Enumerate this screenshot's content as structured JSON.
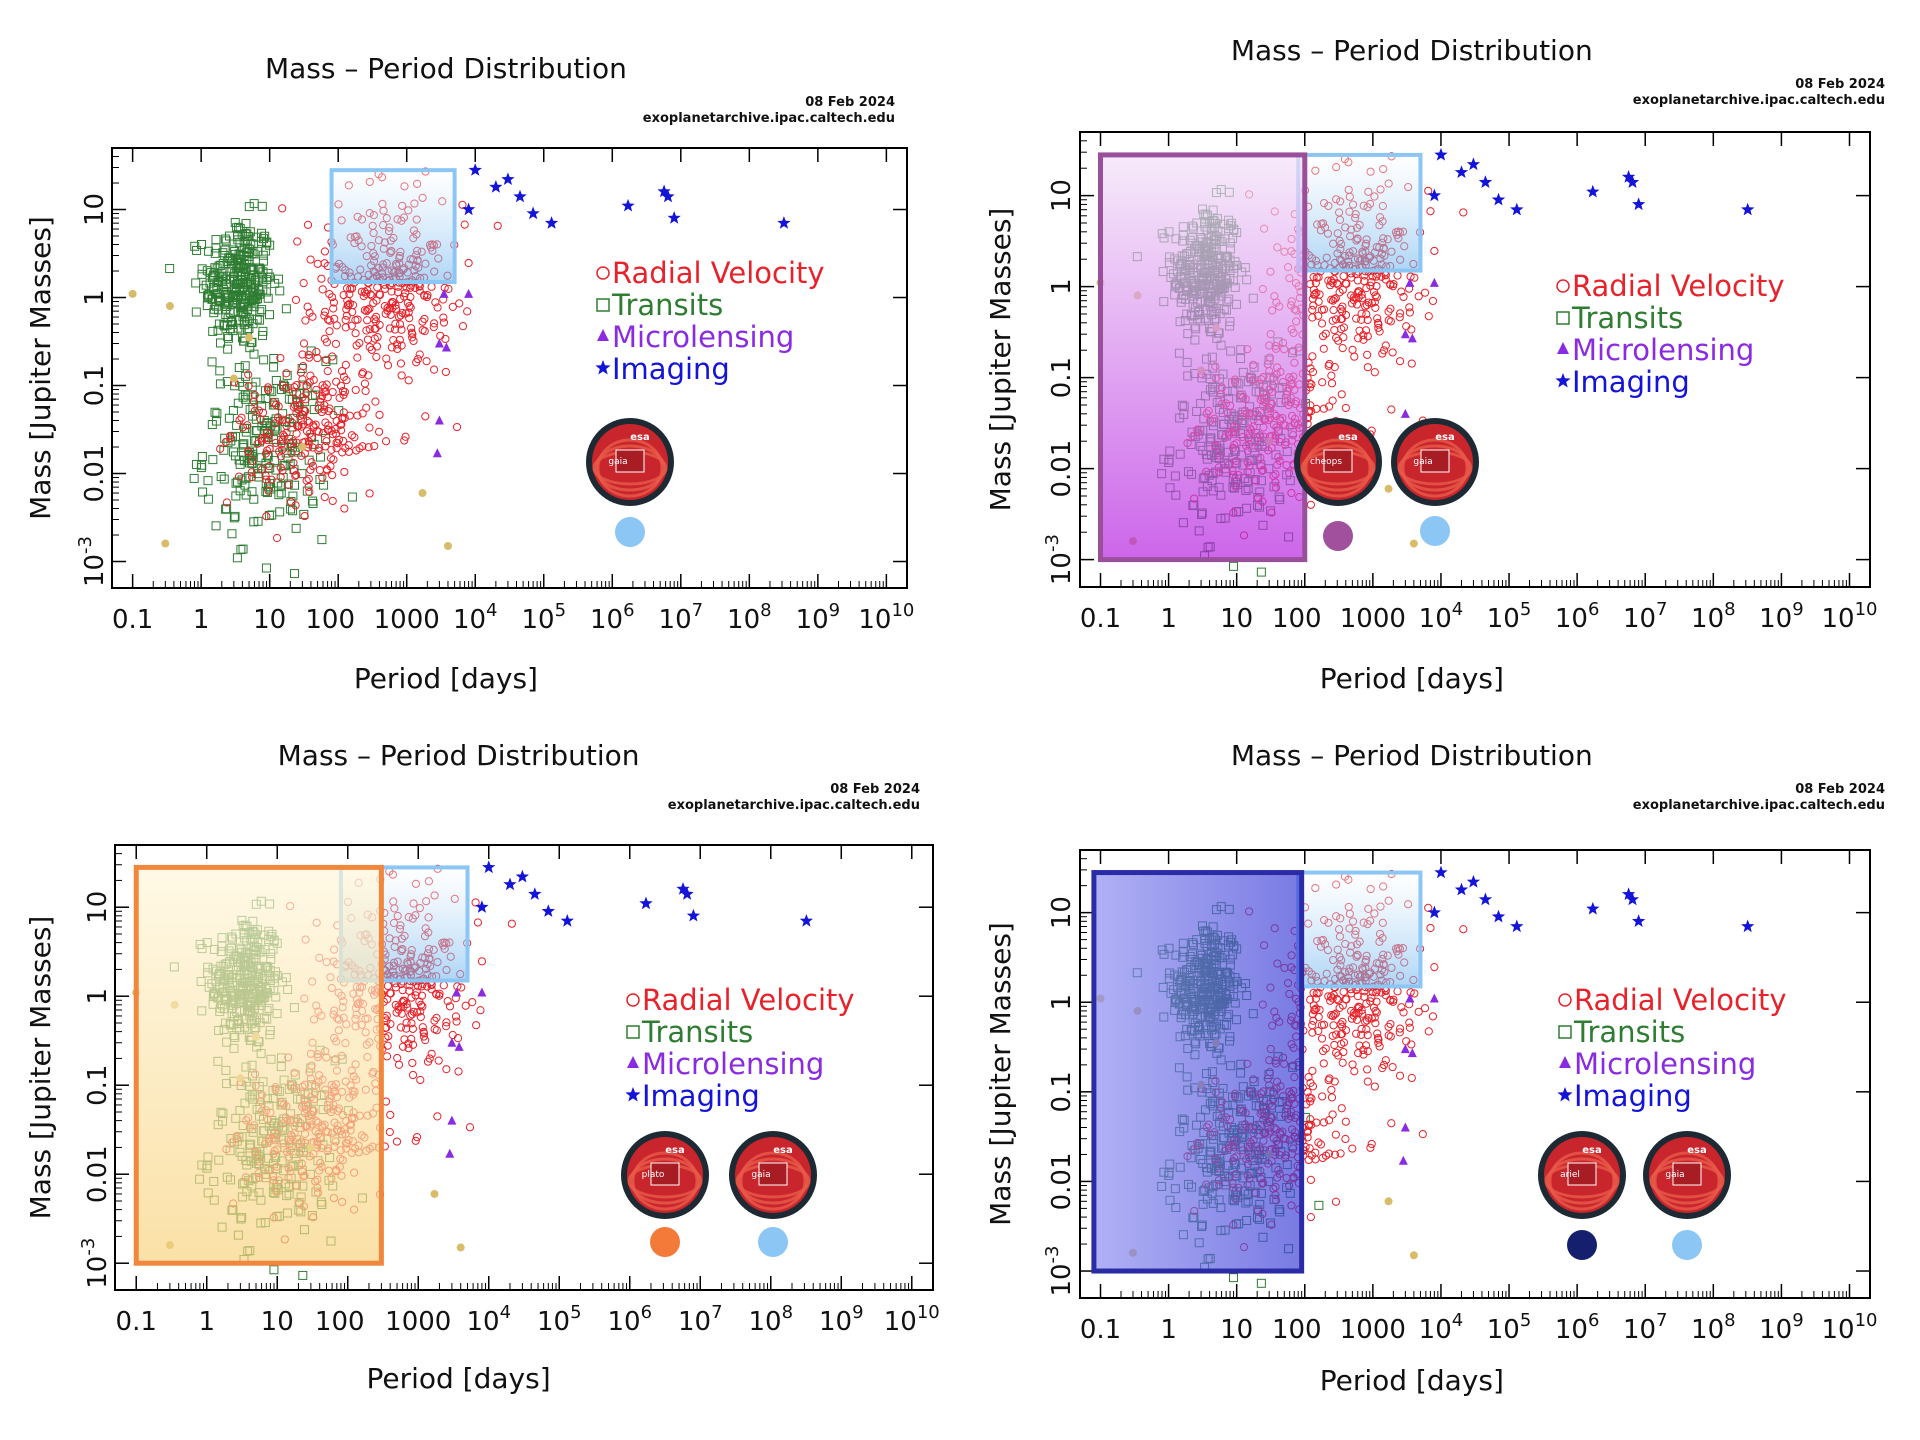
{
  "figure": {
    "panels": [
      {
        "id": "tl",
        "mission_logos": [
          "gaia"
        ],
        "mission_dot_colors": [
          "#8cc6f5"
        ],
        "box_color": "#8cc6f5"
      },
      {
        "id": "tr",
        "mission_logos": [
          "cheops",
          "gaia"
        ],
        "mission_dot_colors": [
          "#a0509c",
          "#8cc6f5"
        ],
        "box_color": "#9a4f9a"
      },
      {
        "id": "bl",
        "mission_logos": [
          "plato",
          "gaia"
        ],
        "mission_dot_colors": [
          "#f47a3a",
          "#8cc6f5"
        ],
        "box_color": "#f0873c"
      },
      {
        "id": "br",
        "mission_logos": [
          "ariel",
          "gaia"
        ],
        "mission_dot_colors": [
          "#14206e",
          "#8cc6f5"
        ],
        "box_color": "#2a2ba5"
      }
    ],
    "logo_text": {
      "esa": "esa",
      "gaia": "gaia",
      "cheops": "cheops",
      "plato": "plato",
      "ariel": "ariel"
    }
  },
  "chart_data": [
    {
      "type": "scatter",
      "title": "Mass – Period Distribution",
      "date": "08 Feb 2024",
      "source": "exoplanetarchive.ipac.caltech.edu",
      "xlabel": "Period [days]",
      "ylabel": "Mass [Jupiter Masses]",
      "xscale": "log",
      "yscale": "log",
      "xlim": [
        0.05,
        20000000000
      ],
      "ylim": [
        0.0005,
        50
      ],
      "x_ticks": [
        "0.1",
        "1",
        "10",
        "100",
        "1000",
        "10^4",
        "10^5",
        "10^6",
        "10^7",
        "10^8",
        "10^9",
        "10^10"
      ],
      "y_ticks": [
        "10^-3",
        "0.01",
        "0.1",
        "1",
        "10"
      ],
      "legend": [
        {
          "name": "Radial Velocity",
          "marker": "circle",
          "color": "#e8222a"
        },
        {
          "name": "Transits",
          "marker": "square",
          "color": "#2e7d32"
        },
        {
          "name": "Microlensing",
          "marker": "triangle",
          "color": "#8a2be2"
        },
        {
          "name": "Imaging",
          "marker": "star",
          "color": "#1414d8"
        }
      ],
      "highlight_regions": [
        {
          "mission": "Gaia",
          "period_range": [
            80,
            5000
          ],
          "mass_range": [
            1.5,
            28
          ],
          "color": "#8cc6f5"
        }
      ],
      "series": [
        {
          "name": "Radial Velocity",
          "description": "hundreds of planets, period ~3 d to ~2e4 d, mass ~0.01 to ~30 MJ"
        },
        {
          "name": "Transits",
          "description": "dense cluster, period ~0.3 d to ~100 d, mass ~0.001 to ~20 MJ"
        },
        {
          "name": "Microlensing",
          "points": [
            [
              3000,
              0.04
            ],
            [
              2800,
              0.017
            ],
            [
              3500,
              1.1
            ],
            [
              3000,
              0.3
            ],
            [
              3800,
              0.27
            ],
            [
              8000,
              1.1
            ]
          ]
        },
        {
          "name": "Imaging",
          "points": [
            [
              8000,
              10
            ],
            [
              10000,
              28
            ],
            [
              20000,
              18
            ],
            [
              30000,
              22
            ],
            [
              45000,
              14
            ],
            [
              70000,
              9
            ],
            [
              130000,
              7
            ],
            [
              1700000,
              11
            ],
            [
              5700000,
              16
            ],
            [
              6500000,
              14
            ],
            [
              8000000,
              8
            ],
            [
              320000000,
              7
            ]
          ]
        }
      ]
    },
    {
      "type": "scatter",
      "title": "Mass – Period Distribution",
      "date": "08 Feb 2024",
      "source": "exoplanetarchive.ipac.caltech.edu",
      "xlabel": "Period [days]",
      "ylabel": "Mass [Jupiter Masses]",
      "xscale": "log",
      "yscale": "log",
      "xlim": [
        0.05,
        20000000000
      ],
      "ylim": [
        0.0005,
        50
      ],
      "x_ticks": [
        "0.1",
        "1",
        "10",
        "100",
        "1000",
        "10^4",
        "10^5",
        "10^6",
        "10^7",
        "10^8",
        "10^9",
        "10^10"
      ],
      "y_ticks": [
        "10^-3",
        "0.01",
        "0.1",
        "1",
        "10"
      ],
      "legend": [
        "Radial Velocity",
        "Transits",
        "Microlensing",
        "Imaging"
      ],
      "highlight_regions": [
        {
          "mission": "Gaia",
          "period_range": [
            80,
            5000
          ],
          "mass_range": [
            1.5,
            28
          ],
          "color": "#8cc6f5"
        },
        {
          "mission": "Cheops",
          "period_range": [
            0.1,
            100
          ],
          "mass_range": [
            0.001,
            28
          ],
          "color": "#9a4f9a"
        }
      ]
    },
    {
      "type": "scatter",
      "title": "Mass – Period Distribution",
      "date": "08 Feb 2024",
      "source": "exoplanetarchive.ipac.caltech.edu",
      "xlabel": "Period [days]",
      "ylabel": "Mass [Jupiter Masses]",
      "xscale": "log",
      "yscale": "log",
      "xlim": [
        0.05,
        20000000000
      ],
      "ylim": [
        0.0005,
        50
      ],
      "x_ticks": [
        "0.1",
        "1",
        "10",
        "100",
        "1000",
        "10^4",
        "10^5",
        "10^6",
        "10^7",
        "10^8",
        "10^9",
        "10^10"
      ],
      "y_ticks": [
        "10^-3",
        "0.01",
        "0.1",
        "1",
        "10"
      ],
      "legend": [
        "Radial Velocity",
        "Transits",
        "Microlensing",
        "Imaging"
      ],
      "highlight_regions": [
        {
          "mission": "Gaia",
          "period_range": [
            80,
            5000
          ],
          "mass_range": [
            1.5,
            28
          ],
          "color": "#8cc6f5"
        },
        {
          "mission": "PLATO",
          "period_range": [
            0.1,
            300
          ],
          "mass_range": [
            0.001,
            28
          ],
          "color": "#f0873c"
        }
      ]
    },
    {
      "type": "scatter",
      "title": "Mass – Period Distribution",
      "date": "08 Feb 2024",
      "source": "exoplanetarchive.ipac.caltech.edu",
      "xlabel": "Period [days]",
      "ylabel": "Mass [Jupiter Masses]",
      "xscale": "log",
      "yscale": "log",
      "xlim": [
        0.05,
        20000000000
      ],
      "ylim": [
        0.0005,
        50
      ],
      "x_ticks": [
        "0.1",
        "1",
        "10",
        "100",
        "1000",
        "10^4",
        "10^5",
        "10^6",
        "10^7",
        "10^8",
        "10^9",
        "10^10"
      ],
      "y_ticks": [
        "10^-3",
        "0.01",
        "0.1",
        "1",
        "10"
      ],
      "legend": [
        "Radial Velocity",
        "Transits",
        "Microlensing",
        "Imaging"
      ],
      "highlight_regions": [
        {
          "mission": "Gaia",
          "period_range": [
            80,
            5000
          ],
          "mass_range": [
            1.5,
            28
          ],
          "color": "#8cc6f5"
        },
        {
          "mission": "Ariel",
          "period_range": [
            0.08,
            90
          ],
          "mass_range": [
            0.001,
            28
          ],
          "color": "#2a2ba5"
        }
      ]
    }
  ]
}
